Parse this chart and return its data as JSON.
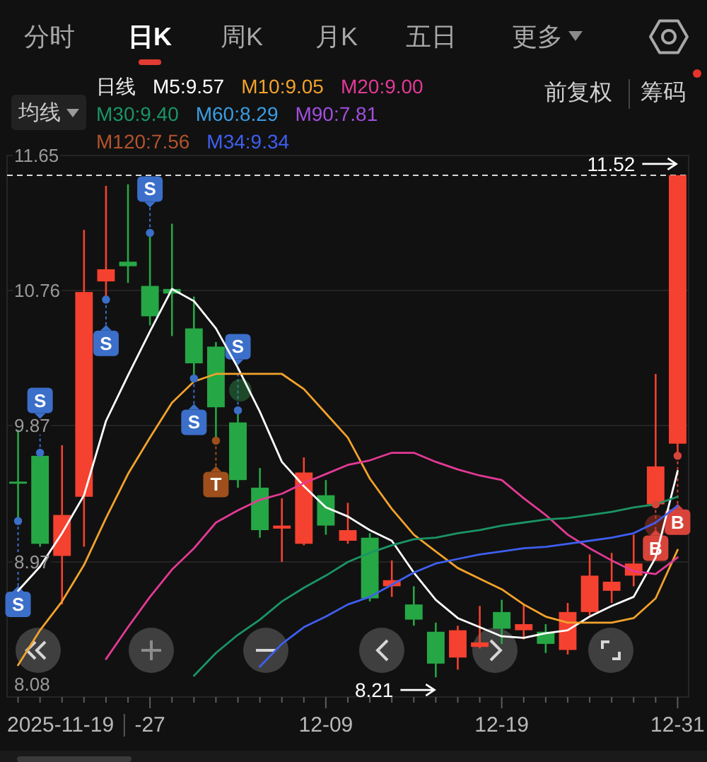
{
  "chart_data": {
    "type": "candlestick",
    "categories": [
      null,
      null,
      null,
      null,
      null,
      null,
      "-27",
      null,
      null,
      null,
      null,
      null,
      null,
      null,
      "12-09",
      null,
      null,
      null,
      null,
      null,
      null,
      null,
      "12-19",
      null,
      null,
      null,
      null,
      null,
      null,
      null,
      "12-31"
    ],
    "ylim": [
      8.08,
      11.65
    ],
    "yticks": [
      8.08,
      8.97,
      9.87,
      10.76,
      11.65
    ],
    "grid": "y",
    "ohlc": [
      [
        9.5,
        9.84,
        9.24,
        9.49
      ],
      [
        9.67,
        9.69,
        9.07,
        9.09
      ],
      [
        9.01,
        9.74,
        8.69,
        9.28
      ],
      [
        9.4,
        11.16,
        9.07,
        10.75
      ],
      [
        10.82,
        11.45,
        10.7,
        10.9
      ],
      [
        10.95,
        11.46,
        10.81,
        10.92
      ],
      [
        10.79,
        11.14,
        10.53,
        10.59
      ],
      [
        10.77,
        11.2,
        10.46,
        10.74
      ],
      [
        10.51,
        10.72,
        10.18,
        10.28
      ],
      [
        10.39,
        10.42,
        9.77,
        9.99
      ],
      [
        9.89,
        9.97,
        9.46,
        9.51
      ],
      [
        9.46,
        9.59,
        9.13,
        9.18
      ],
      [
        9.19,
        9.39,
        8.97,
        9.21
      ],
      [
        9.09,
        9.66,
        9.08,
        9.56
      ],
      [
        9.41,
        9.51,
        9.15,
        9.21
      ],
      [
        9.11,
        9.36,
        9.09,
        9.18
      ],
      [
        9.13,
        9.16,
        8.71,
        8.73
      ],
      [
        8.81,
        8.98,
        8.74,
        8.85
      ],
      [
        8.69,
        8.81,
        8.55,
        8.59
      ],
      [
        8.51,
        8.57,
        8.21,
        8.3
      ],
      [
        8.34,
        8.55,
        8.26,
        8.52
      ],
      [
        8.41,
        8.68,
        8.4,
        8.44
      ],
      [
        8.64,
        8.72,
        8.43,
        8.53
      ],
      [
        8.52,
        8.69,
        8.46,
        8.56
      ],
      [
        8.51,
        8.56,
        8.37,
        8.43
      ],
      [
        8.39,
        8.7,
        8.36,
        8.64
      ],
      [
        8.64,
        9.02,
        8.62,
        8.88
      ],
      [
        8.78,
        9.03,
        8.7,
        8.84
      ],
      [
        8.88,
        9.15,
        8.81,
        8.96
      ],
      [
        9.35,
        10.21,
        9.35,
        9.6
      ],
      [
        9.75,
        11.52,
        9.67,
        11.52
      ]
    ],
    "colors": [
      "#26a745",
      "#26a745",
      "#f5412f",
      "#f5412f",
      "#f5412f",
      "#26a745",
      "#26a745",
      "#26a745",
      "#26a745",
      "#26a745",
      "#26a745",
      "#26a745",
      "#f5412f",
      "#f5412f",
      "#26a745",
      "#f5412f",
      "#26a745",
      "#f5412f",
      "#26a745",
      "#26a745",
      "#f5412f",
      "#f5412f",
      "#26a745",
      "#f5412f",
      "#26a745",
      "#f5412f",
      "#f5412f",
      "#f5412f",
      "#f5412f",
      "#f5412f",
      "#f5412f"
    ],
    "series": [
      {
        "type": "line",
        "name": "M5:9.57",
        "color": "#ffffff",
        "values": [
          8.78,
          8.94,
          9.16,
          9.41,
          9.9,
          10.2,
          10.49,
          10.77,
          10.69,
          10.51,
          10.25,
          9.96,
          9.63,
          9.47,
          9.33,
          9.27,
          9.18,
          9.11,
          8.9,
          8.72,
          8.6,
          8.54,
          8.48,
          8.47,
          8.5,
          8.52,
          8.61,
          8.68,
          8.74,
          9.0,
          9.57
        ]
      },
      {
        "type": "line",
        "name": "M10:9.05",
        "color": "#f2a22c",
        "values": [
          8.29,
          8.52,
          8.71,
          8.95,
          9.26,
          9.55,
          9.79,
          10.02,
          10.16,
          10.21,
          10.21,
          10.21,
          10.21,
          10.11,
          9.95,
          9.79,
          9.52,
          9.32,
          9.15,
          9.04,
          8.93,
          8.86,
          8.79,
          8.69,
          8.61,
          8.57,
          8.57,
          8.57,
          8.6,
          8.73,
          9.05
        ]
      },
      {
        "type": "line",
        "name": "M20:9.00",
        "color": "#e33a95",
        "values": [
          null,
          null,
          null,
          null,
          8.33,
          8.54,
          8.74,
          8.92,
          9.06,
          9.23,
          9.31,
          9.38,
          9.42,
          9.49,
          9.55,
          9.61,
          9.64,
          9.69,
          9.69,
          9.63,
          9.58,
          9.54,
          9.51,
          9.39,
          9.28,
          9.15,
          9.06,
          8.98,
          8.91,
          8.89,
          9.0
        ]
      },
      {
        "type": "line",
        "name": "M30:9.40",
        "color": "#1b9466",
        "values": [
          null,
          null,
          null,
          null,
          null,
          null,
          null,
          null,
          8.22,
          8.37,
          8.49,
          8.59,
          8.71,
          8.8,
          8.88,
          8.97,
          9.03,
          9.08,
          9.12,
          9.13,
          9.16,
          9.18,
          9.21,
          9.23,
          9.25,
          9.26,
          9.28,
          9.3,
          9.33,
          9.35,
          9.4
        ]
      },
      {
        "type": "line",
        "name": "M60:8.29",
        "color": "#3b9de3",
        "values": [
          null,
          null,
          null,
          null,
          null,
          null,
          null,
          null,
          null,
          null,
          null,
          null,
          null,
          null,
          null,
          null,
          null,
          null,
          null,
          null,
          null,
          null,
          null,
          null,
          null,
          null,
          null,
          null,
          null,
          null,
          null
        ]
      },
      {
        "type": "line",
        "name": "M90:7.81",
        "color": "#a24fe0",
        "values": [
          null,
          null,
          null,
          null,
          null,
          null,
          null,
          null,
          null,
          null,
          null,
          null,
          null,
          null,
          null,
          null,
          null,
          null,
          null,
          null,
          null,
          null,
          null,
          null,
          null,
          null,
          null,
          null,
          null,
          null,
          null
        ]
      },
      {
        "type": "line",
        "name": "M120:7.56",
        "color": "#b3532c",
        "values": [
          null,
          null,
          null,
          null,
          null,
          null,
          null,
          null,
          null,
          null,
          null,
          null,
          null,
          null,
          null,
          null,
          null,
          null,
          null,
          null,
          null,
          null,
          null,
          null,
          null,
          null,
          null,
          null,
          null,
          null,
          null
        ]
      },
      {
        "type": "line",
        "name": "M34:9.34",
        "color": "#3f5ff0",
        "values": [
          null,
          null,
          null,
          null,
          null,
          null,
          null,
          null,
          null,
          null,
          null,
          8.28,
          8.43,
          8.54,
          8.61,
          8.69,
          8.74,
          8.82,
          8.9,
          8.96,
          8.99,
          9.02,
          9.04,
          9.06,
          9.07,
          9.09,
          9.11,
          9.13,
          9.16,
          9.23,
          9.34
        ]
      },
      {
        "type": "scatter",
        "color": "#3b6fc9",
        "marker": "circle",
        "values": [
          9.24,
          9.69,
          null,
          null,
          10.7,
          null,
          11.14,
          null,
          10.18,
          null,
          9.97,
          null,
          null,
          null,
          null,
          null,
          null,
          null,
          null,
          null,
          null,
          null,
          null,
          null,
          null,
          null,
          null,
          null,
          null,
          null,
          null
        ],
        "value_labels": [
          "S",
          "S",
          null,
          null,
          "S",
          null,
          "S",
          null,
          "S",
          null,
          "S",
          null,
          null,
          null,
          null,
          null,
          null,
          null,
          null,
          null,
          null,
          null,
          null,
          null,
          null,
          null,
          null,
          null,
          null,
          null,
          null
        ]
      },
      {
        "type": "scatter",
        "color": "#9e4f1c",
        "marker": "circle",
        "values": [
          null,
          null,
          null,
          null,
          null,
          null,
          null,
          null,
          null,
          9.77,
          null,
          null,
          null,
          null,
          null,
          null,
          null,
          null,
          null,
          null,
          null,
          null,
          null,
          null,
          null,
          null,
          null,
          null,
          null,
          null,
          null
        ],
        "value_labels": [
          null,
          null,
          null,
          null,
          null,
          null,
          null,
          null,
          null,
          "T",
          null,
          null,
          null,
          null,
          null,
          null,
          null,
          null,
          null,
          null,
          null,
          null,
          null,
          null,
          null,
          null,
          null,
          null,
          null,
          null,
          null
        ]
      },
      {
        "type": "scatter",
        "color": "#d8443a",
        "marker": "circle",
        "values": [
          null,
          null,
          null,
          null,
          null,
          null,
          null,
          null,
          null,
          null,
          null,
          null,
          null,
          null,
          null,
          null,
          null,
          null,
          null,
          null,
          null,
          null,
          null,
          null,
          null,
          null,
          null,
          null,
          null,
          9.35,
          9.67
        ],
        "value_labels": [
          null,
          null,
          null,
          null,
          null,
          null,
          null,
          null,
          null,
          null,
          null,
          null,
          null,
          null,
          null,
          null,
          null,
          null,
          null,
          null,
          null,
          null,
          null,
          null,
          null,
          null,
          null,
          null,
          null,
          "B",
          "B"
        ]
      }
    ],
    "legend": "top left",
    "legend_title": "日线",
    "ref_lines": [
      {
        "axis": "y",
        "value": 11.52,
        "color": "#d8d8d8",
        "line_style": "dashed"
      }
    ],
    "annotations": [
      "分时",
      "日K",
      "周K",
      "月K",
      "五日",
      "更多",
      "均线",
      "前复权",
      "筹码",
      "2025-11-19",
      "11.52",
      "8.21"
    ]
  }
}
